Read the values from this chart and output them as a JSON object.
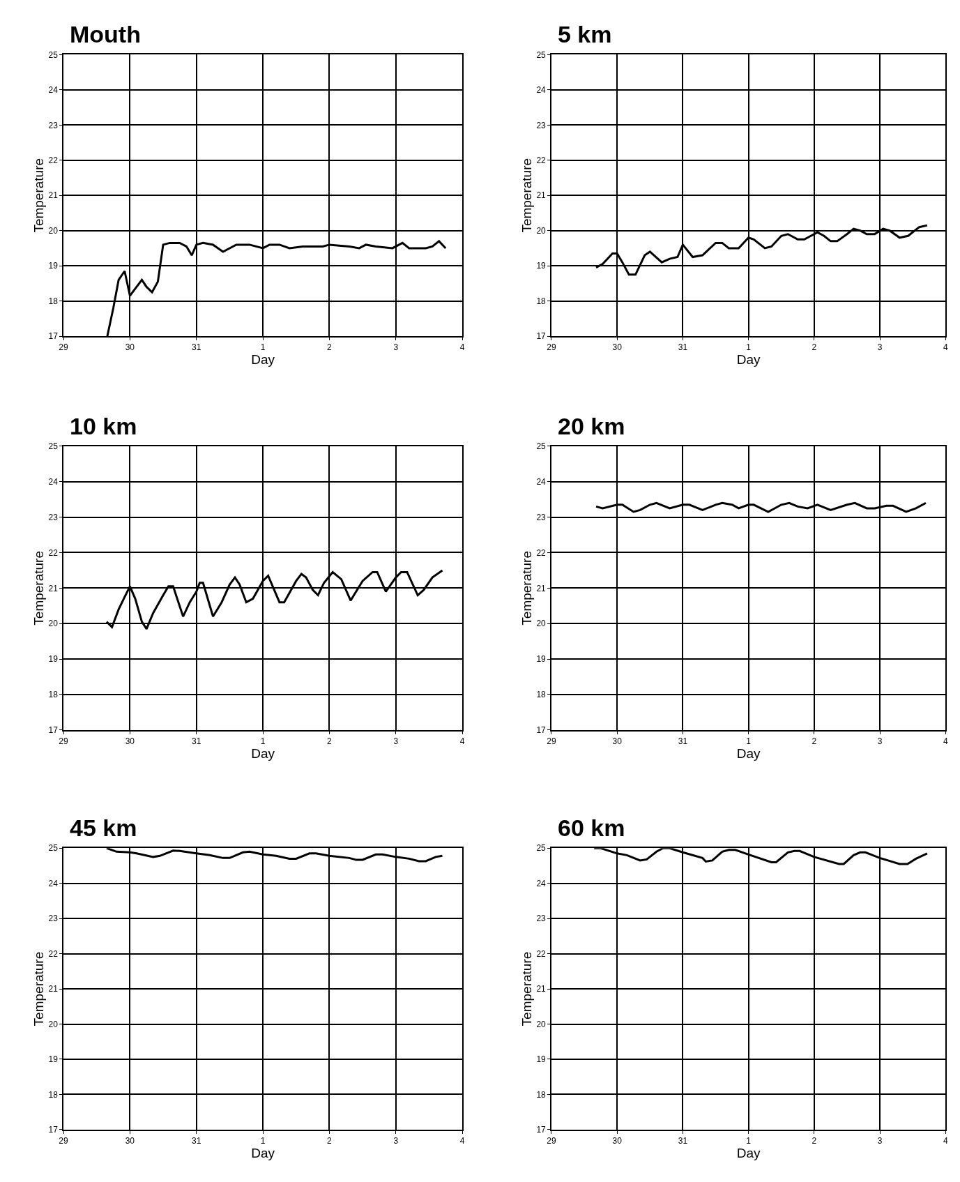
{
  "chart_data": [
    {
      "type": "line",
      "title": "Mouth",
      "xlabel": "Day",
      "ylabel": "Temperature",
      "xlim": [
        "--07-29",
        "--08-04"
      ],
      "ylim": [
        17,
        25
      ],
      "grid": true,
      "marker": "none",
      "line_style": "solid",
      "xticks": [
        {
          "value": "--07-29",
          "label": "29"
        },
        {
          "value": "--07-30",
          "label": "30"
        },
        {
          "value": "--07-31",
          "label": "31"
        },
        {
          "value": "--08-01",
          "label": "1"
        },
        {
          "value": "--08-02",
          "label": "2"
        },
        {
          "value": "--08-03",
          "label": "3"
        },
        {
          "value": "--08-04",
          "label": "4"
        }
      ],
      "yticks": [
        17,
        18,
        19,
        20,
        21,
        22,
        23,
        24,
        25
      ],
      "x": [
        "--07-29T15:50",
        "--07-29T18:00",
        "--07-29T19:55",
        "--07-29T22:05",
        "--07-30T00:00",
        "--07-30T01:55",
        "--07-30T04:19",
        "--07-30T06:00",
        "--07-30T08:00",
        "--07-30T10:05",
        "--07-30T12:00",
        "--07-30T14:24",
        "--07-30T18:00",
        "--07-30T20:24",
        "--07-30T22:19",
        "--07-31T00:00",
        "--07-31T02:24",
        "--07-31T06:00",
        "--07-31T09:36",
        "--07-31T14:24",
        "--07-31T19:12",
        "--08-01T00:00",
        "--08-01T02:24",
        "--08-01T06:00",
        "--08-01T09:36",
        "--08-01T14:24",
        "--08-01T21:36",
        "--08-02T00:00",
        "--08-02T07:12",
        "--08-02T10:48",
        "--08-02T13:12",
        "--08-02T16:48",
        "--08-02T22:48",
        "--08-03T02:24",
        "--08-03T04:48",
        "--08-03T10:48",
        "--08-03T13:12",
        "--08-03T15:36",
        "--08-03T18:00"
      ],
      "series": [
        {
          "color": "#000000",
          "values": [
            17.0,
            17.8,
            18.6,
            18.85,
            18.15,
            18.35,
            18.6,
            18.4,
            18.25,
            18.55,
            19.6,
            19.65,
            19.65,
            19.55,
            19.3,
            19.6,
            19.65,
            19.6,
            19.4,
            19.6,
            19.6,
            19.5,
            19.6,
            19.6,
            19.5,
            19.55,
            19.55,
            19.6,
            19.55,
            19.5,
            19.6,
            19.55,
            19.5,
            19.65,
            19.5,
            19.5,
            19.55,
            19.7,
            19.5
          ]
        }
      ]
    },
    {
      "type": "line",
      "title": "5 km",
      "xlabel": "Day",
      "ylabel": "Temperature",
      "xlim": [
        "--07-29",
        "--08-04"
      ],
      "ylim": [
        17,
        25
      ],
      "grid": true,
      "marker": "none",
      "line_style": "solid",
      "xticks": [
        {
          "value": "--07-29",
          "label": "29"
        },
        {
          "value": "--07-30",
          "label": "30"
        },
        {
          "value": "--07-31",
          "label": "31"
        },
        {
          "value": "--08-01",
          "label": "1"
        },
        {
          "value": "--08-02",
          "label": "2"
        },
        {
          "value": "--08-03",
          "label": "3"
        },
        {
          "value": "--08-04",
          "label": "4"
        }
      ],
      "yticks": [
        17,
        18,
        19,
        20,
        21,
        22,
        23,
        24,
        25
      ],
      "x": [
        "--07-29T16:19",
        "--07-29T18:43",
        "--07-29T22:19",
        "--07-30T00:00",
        "--07-30T01:55",
        "--07-30T04:19",
        "--07-30T06:43",
        "--07-30T10:05",
        "--07-30T12:00",
        "--07-30T16:19",
        "--07-30T19:12",
        "--07-30T22:05",
        "--07-31T00:00",
        "--07-31T03:36",
        "--07-31T07:12",
        "--07-31T12:00",
        "--07-31T14:24",
        "--07-31T16:48",
        "--07-31T20:24",
        "--08-01T00:00",
        "--08-01T01:55",
        "--08-01T06:00",
        "--08-01T08:24",
        "--08-01T12:00",
        "--08-01T14:24",
        "--08-01T18:00",
        "--08-01T20:24",
        "--08-02T01:12",
        "--08-02T03:36",
        "--08-02T06:00",
        "--08-02T08:24",
        "--08-02T12:00",
        "--08-02T14:24",
        "--08-02T16:48",
        "--08-02T19:12",
        "--08-02T22:05",
        "--08-03T01:12",
        "--08-03T03:36",
        "--08-03T07:12",
        "--08-03T10:19",
        "--08-03T14:24",
        "--08-03T17:17"
      ],
      "series": [
        {
          "color": "#000000",
          "values": [
            18.95,
            19.05,
            19.35,
            19.35,
            19.1,
            18.75,
            18.75,
            19.3,
            19.4,
            19.1,
            19.2,
            19.25,
            19.6,
            19.25,
            19.3,
            19.65,
            19.65,
            19.5,
            19.5,
            19.8,
            19.75,
            19.5,
            19.55,
            19.85,
            19.9,
            19.75,
            19.75,
            19.95,
            19.85,
            19.7,
            19.7,
            19.9,
            20.05,
            20.0,
            19.9,
            19.9,
            20.05,
            20.0,
            19.8,
            19.85,
            20.1,
            20.15
          ]
        }
      ]
    },
    {
      "type": "line",
      "title": "10 km",
      "xlabel": "Day",
      "ylabel": "Temperature",
      "xlim": [
        "--07-29",
        "--08-04"
      ],
      "ylim": [
        17,
        25
      ],
      "grid": true,
      "marker": "none",
      "line_style": "solid",
      "xticks": [
        {
          "value": "--07-29",
          "label": "29"
        },
        {
          "value": "--07-30",
          "label": "30"
        },
        {
          "value": "--07-31",
          "label": "31"
        },
        {
          "value": "--08-01",
          "label": "1"
        },
        {
          "value": "--08-02",
          "label": "2"
        },
        {
          "value": "--08-03",
          "label": "3"
        },
        {
          "value": "--08-04",
          "label": "4"
        }
      ],
      "yticks": [
        17,
        18,
        19,
        20,
        21,
        22,
        23,
        24,
        25
      ],
      "x": [
        "--07-29T15:36",
        "--07-29T17:31",
        "--07-29T19:55",
        "--07-29T22:05",
        "--07-30T00:00",
        "--07-30T01:55",
        "--07-30T04:19",
        "--07-30T06:00",
        "--07-30T08:24",
        "--07-30T12:00",
        "--07-30T13:55",
        "--07-30T15:36",
        "--07-30T19:12",
        "--07-30T21:36",
        "--07-31T00:00",
        "--07-31T01:12",
        "--07-31T02:24",
        "--07-31T06:00",
        "--07-31T09:07",
        "--07-31T12:00",
        "--07-31T13:55",
        "--07-31T15:36",
        "--07-31T18:00",
        "--07-31T20:24",
        "--08-01T00:00",
        "--08-01T01:55",
        "--08-01T06:00",
        "--08-01T07:41",
        "--08-01T12:00",
        "--08-01T13:55",
        "--08-01T15:36",
        "--08-01T18:00",
        "--08-01T19:55",
        "--08-01T22:05",
        "--08-02T01:12",
        "--08-02T04:19",
        "--08-02T07:41",
        "--08-02T12:00",
        "--08-02T15:36",
        "--08-02T17:17",
        "--08-02T20:24",
        "--08-03T00:00",
        "--08-03T01:55",
        "--08-03T04:05",
        "--08-03T07:55",
        "--08-03T10:05",
        "--08-03T13:12",
        "--08-03T16:48"
      ],
      "series": [
        {
          "color": "#000000",
          "values": [
            20.05,
            19.9,
            20.4,
            20.75,
            21.05,
            20.7,
            20.05,
            19.85,
            20.3,
            20.8,
            21.05,
            21.05,
            20.2,
            20.6,
            20.9,
            21.15,
            21.15,
            20.2,
            20.6,
            21.1,
            21.3,
            21.1,
            20.6,
            20.7,
            21.2,
            21.35,
            20.6,
            20.6,
            21.2,
            21.4,
            21.3,
            20.95,
            20.8,
            21.15,
            21.45,
            21.25,
            20.65,
            21.2,
            21.45,
            21.45,
            20.9,
            21.3,
            21.45,
            21.45,
            20.8,
            20.95,
            21.3,
            21.5
          ]
        }
      ]
    },
    {
      "type": "line",
      "title": "20 km",
      "xlabel": "Day",
      "ylabel": "Temperature",
      "xlim": [
        "--07-29",
        "--08-04"
      ],
      "ylim": [
        17,
        25
      ],
      "grid": true,
      "marker": "none",
      "line_style": "solid",
      "xticks": [
        {
          "value": "--07-29",
          "label": "29"
        },
        {
          "value": "--07-30",
          "label": "30"
        },
        {
          "value": "--07-31",
          "label": "31"
        },
        {
          "value": "--08-01",
          "label": "1"
        },
        {
          "value": "--08-02",
          "label": "2"
        },
        {
          "value": "--08-03",
          "label": "3"
        },
        {
          "value": "--08-04",
          "label": "4"
        }
      ],
      "yticks": [
        17,
        18,
        19,
        20,
        21,
        22,
        23,
        24,
        25
      ],
      "x": [
        "--07-29T16:19",
        "--07-29T18:43",
        "--07-30T00:00",
        "--07-30T01:55",
        "--07-30T06:00",
        "--07-30T08:24",
        "--07-30T12:00",
        "--07-30T14:24",
        "--07-30T19:12",
        "--07-31T00:00",
        "--07-31T02:24",
        "--07-31T07:12",
        "--07-31T12:00",
        "--07-31T14:24",
        "--07-31T18:00",
        "--07-31T20:24",
        "--08-01T00:00",
        "--08-01T01:55",
        "--08-01T07:12",
        "--08-01T12:00",
        "--08-01T14:53",
        "--08-01T18:00",
        "--08-01T21:36",
        "--08-02T01:12",
        "--08-02T06:00",
        "--08-02T12:00",
        "--08-02T14:53",
        "--08-02T19:12",
        "--08-02T22:05",
        "--08-03T02:24",
        "--08-03T04:48",
        "--08-03T09:36",
        "--08-03T13:12",
        "--08-03T16:48"
      ],
      "series": [
        {
          "color": "#000000",
          "values": [
            23.3,
            23.25,
            23.35,
            23.35,
            23.15,
            23.2,
            23.35,
            23.4,
            23.25,
            23.35,
            23.35,
            23.2,
            23.35,
            23.4,
            23.35,
            23.25,
            23.35,
            23.35,
            23.15,
            23.35,
            23.4,
            23.3,
            23.25,
            23.35,
            23.2,
            23.35,
            23.4,
            23.25,
            23.25,
            23.32,
            23.32,
            23.15,
            23.25,
            23.4
          ]
        }
      ]
    },
    {
      "type": "line",
      "title": "45 km",
      "xlabel": "Day",
      "ylabel": "Temperature",
      "xlim": [
        "--07-29",
        "--08-04"
      ],
      "ylim": [
        17,
        25
      ],
      "grid": true,
      "marker": "none",
      "line_style": "solid",
      "xticks": [
        {
          "value": "--07-29",
          "label": "29"
        },
        {
          "value": "--07-30",
          "label": "30"
        },
        {
          "value": "--07-31",
          "label": "31"
        },
        {
          "value": "--08-01",
          "label": "1"
        },
        {
          "value": "--08-02",
          "label": "2"
        },
        {
          "value": "--08-03",
          "label": "3"
        },
        {
          "value": "--08-04",
          "label": "4"
        }
      ],
      "yticks": [
        17,
        18,
        19,
        20,
        21,
        22,
        23,
        24,
        25
      ],
      "x": [
        "--07-29T15:36",
        "--07-29T19:12",
        "--07-30T00:00",
        "--07-30T02:24",
        "--07-30T08:24",
        "--07-30T10:48",
        "--07-30T15:36",
        "--07-30T18:00",
        "--07-31T00:00",
        "--07-31T04:48",
        "--07-31T09:36",
        "--07-31T12:00",
        "--07-31T16:48",
        "--07-31T19:12",
        "--08-01T00:00",
        "--08-01T04:48",
        "--08-01T09:36",
        "--08-01T12:00",
        "--08-01T16:48",
        "--08-01T19:12",
        "--08-02T00:00",
        "--08-02T07:12",
        "--08-02T09:36",
        "--08-02T12:00",
        "--08-02T16:48",
        "--08-02T19:12",
        "--08-03T00:00",
        "--08-03T04:48",
        "--08-03T08:24",
        "--08-03T10:48",
        "--08-03T14:24",
        "--08-03T16:48"
      ],
      "series": [
        {
          "color": "#000000",
          "values": [
            25.0,
            24.9,
            24.88,
            24.85,
            24.75,
            24.78,
            24.93,
            24.92,
            24.85,
            24.8,
            24.72,
            24.72,
            24.88,
            24.9,
            24.82,
            24.78,
            24.7,
            24.7,
            24.85,
            24.85,
            24.78,
            24.72,
            24.67,
            24.67,
            24.82,
            24.82,
            24.75,
            24.7,
            24.63,
            24.63,
            24.75,
            24.78
          ]
        }
      ]
    },
    {
      "type": "line",
      "title": "60 km",
      "xlabel": "Day",
      "ylabel": "Temperature",
      "xlim": [
        "--07-29",
        "--08-04"
      ],
      "ylim": [
        17,
        25
      ],
      "grid": true,
      "marker": "none",
      "line_style": "solid",
      "xticks": [
        {
          "value": "--07-29",
          "label": "29"
        },
        {
          "value": "--07-30",
          "label": "30"
        },
        {
          "value": "--07-31",
          "label": "31"
        },
        {
          "value": "--08-01",
          "label": "1"
        },
        {
          "value": "--08-02",
          "label": "2"
        },
        {
          "value": "--08-03",
          "label": "3"
        },
        {
          "value": "--08-04",
          "label": "4"
        }
      ],
      "yticks": [
        17,
        18,
        19,
        20,
        21,
        22,
        23,
        24,
        25
      ],
      "x": [
        "--07-29T15:36",
        "--07-29T18:00",
        "--07-30T00:00",
        "--07-30T03:36",
        "--07-30T08:24",
        "--07-30T10:48",
        "--07-30T14:24",
        "--07-30T16:48",
        "--07-30T19:12",
        "--07-31T00:00",
        "--07-31T07:12",
        "--07-31T08:24",
        "--07-31T10:48",
        "--07-31T14:24",
        "--07-31T16:48",
        "--07-31T19:12",
        "--08-01T00:00",
        "--08-01T08:24",
        "--08-01T10:05",
        "--08-01T14:24",
        "--08-01T16:48",
        "--08-01T18:43",
        "--08-02T00:00",
        "--08-02T09:07",
        "--08-02T10:48",
        "--08-02T14:24",
        "--08-02T16:48",
        "--08-02T18:43",
        "--08-03T00:00",
        "--08-03T07:12",
        "--08-03T10:05",
        "--08-03T13:12",
        "--08-03T17:17"
      ],
      "series": [
        {
          "color": "#000000",
          "values": [
            25.0,
            25.0,
            24.85,
            24.8,
            24.65,
            24.68,
            24.9,
            25.0,
            25.0,
            24.88,
            24.72,
            24.62,
            24.65,
            24.9,
            24.95,
            24.95,
            24.82,
            24.6,
            24.6,
            24.88,
            24.92,
            24.92,
            24.75,
            24.55,
            24.55,
            24.8,
            24.88,
            24.88,
            24.72,
            24.55,
            24.55,
            24.7,
            24.85
          ]
        }
      ]
    }
  ]
}
